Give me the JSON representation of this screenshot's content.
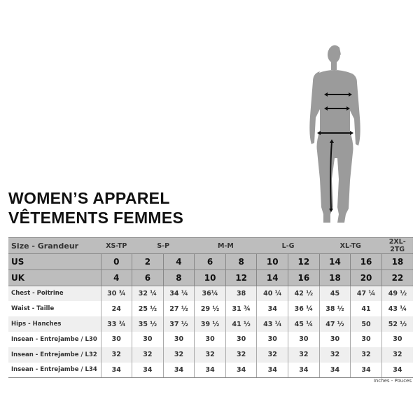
{
  "title_en": "WOMEN’S APPAREL",
  "title_fr": "VÊTEMENTS FEMMES",
  "table": {
    "group_header": {
      "label": "Size - Grandeur",
      "groups": [
        {
          "label": "XS-TP",
          "span": 1
        },
        {
          "label": "S-P",
          "span": 2
        },
        {
          "label": "M-M",
          "span": 2
        },
        {
          "label": "L-G",
          "span": 2
        },
        {
          "label": "XL-TG",
          "span": 2
        },
        {
          "label": "2XL-2TG",
          "span": 1
        }
      ]
    },
    "size_rows": [
      {
        "label": "US",
        "values": [
          "0",
          "2",
          "4",
          "6",
          "8",
          "10",
          "12",
          "14",
          "16",
          "18"
        ]
      },
      {
        "label": "UK",
        "values": [
          "4",
          "6",
          "8",
          "10",
          "12",
          "14",
          "16",
          "18",
          "20",
          "22"
        ]
      }
    ],
    "rows": [
      {
        "label": "Chest - Poitrine",
        "values": [
          "30 ¾",
          "32 ¼",
          "34 ¼",
          "36¼",
          "38",
          "40 ¼",
          "42 ½",
          "45",
          "47 ¼",
          "49 ½"
        ]
      },
      {
        "label": "Waist - Taille",
        "values": [
          "24",
          "25 ½",
          "27 ½",
          "29 ½",
          "31 ¾",
          "34",
          "36 ¼",
          "38 ½",
          "41",
          "43 ¼"
        ]
      },
      {
        "label": "Hips - Hanches",
        "values": [
          "33 ¾",
          "35 ½",
          "37 ½",
          "39 ½",
          "41 ½",
          "43 ¼",
          "45 ¼",
          "47 ½",
          "50",
          "52 ½"
        ]
      },
      {
        "label": "Insean - Entrejambe / L30",
        "values": [
          "30",
          "30",
          "30",
          "30",
          "30",
          "30",
          "30",
          "30",
          "30",
          "30"
        ]
      },
      {
        "label": "Insean - Entrejambe / L32",
        "values": [
          "32",
          "32",
          "32",
          "32",
          "32",
          "32",
          "32",
          "32",
          "32",
          "32"
        ]
      },
      {
        "label": "Insean - Entrejambe / L34",
        "values": [
          "34",
          "34",
          "34",
          "34",
          "34",
          "34",
          "34",
          "34",
          "34",
          "34"
        ]
      }
    ]
  },
  "units": "Inches - Pouces",
  "colors": {
    "header_bg": "#bdbdbd",
    "row_alt": "#efefef",
    "silhouette": "#9b9b9b"
  }
}
